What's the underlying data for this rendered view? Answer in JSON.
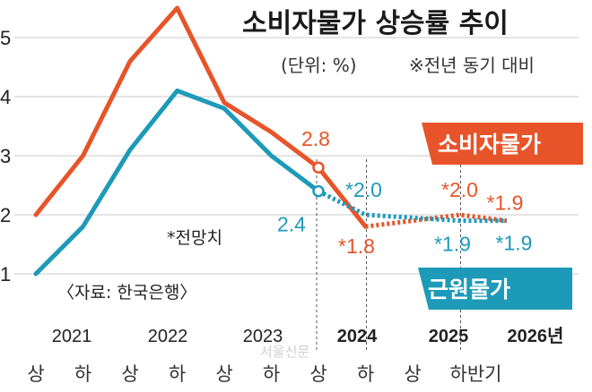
{
  "chart_data": {
    "type": "line",
    "title": "소비자물가 상승률 추이",
    "unit_note": "(단위: %)",
    "comparison_note": "※전년 동기 대비",
    "forecast_note": "*전망치",
    "source": "〈자료: 한국은행〉",
    "watermark": "서울신문",
    "ylim": [
      1,
      5.5
    ],
    "yticks": [
      "1",
      "2",
      "3",
      "4",
      "5"
    ],
    "years": [
      {
        "label": "2021",
        "bold": false
      },
      {
        "label": "2022",
        "bold": false
      },
      {
        "label": "2023",
        "bold": false
      },
      {
        "label": "2024",
        "bold": true
      },
      {
        "label": "2025",
        "bold": true
      },
      {
        "label": "2026년",
        "bold": true
      }
    ],
    "half_labels": [
      "상",
      "하",
      "상",
      "하",
      "상",
      "하",
      "상",
      "하",
      "상",
      "하반기"
    ],
    "series": [
      {
        "name": "소비자물가",
        "color": "#e8542a",
        "x": [
          0,
          0.5,
          1,
          1.5,
          2,
          2.5,
          3,
          3.5,
          4,
          4.5,
          5
        ],
        "values": [
          2.0,
          3.0,
          4.6,
          5.5,
          3.9,
          3.4,
          2.8,
          1.8,
          1.9,
          2.0,
          1.9
        ],
        "solid_until_index": 7,
        "labels": [
          {
            "text": "2.8",
            "index": 6
          },
          {
            "text": "*1.8",
            "index": 7
          },
          {
            "text": "*2.0",
            "index": 9
          },
          {
            "text": "*1.9",
            "index": 10
          }
        ]
      },
      {
        "name": "근원물가",
        "color": "#1d9ab8",
        "x": [
          0,
          0.5,
          1,
          1.5,
          2,
          2.5,
          3,
          3.5,
          4,
          4.5,
          5
        ],
        "values": [
          1.0,
          1.8,
          3.1,
          4.1,
          3.8,
          3.0,
          2.4,
          2.0,
          1.95,
          1.9,
          1.9
        ],
        "solid_until_index": 6,
        "labels": [
          {
            "text": "2.4",
            "index": 6
          },
          {
            "text": "*2.0",
            "index": 7
          },
          {
            "text": "*1.9",
            "index": 9
          },
          {
            "text": "*1.9",
            "index": 10
          }
        ]
      }
    ]
  }
}
